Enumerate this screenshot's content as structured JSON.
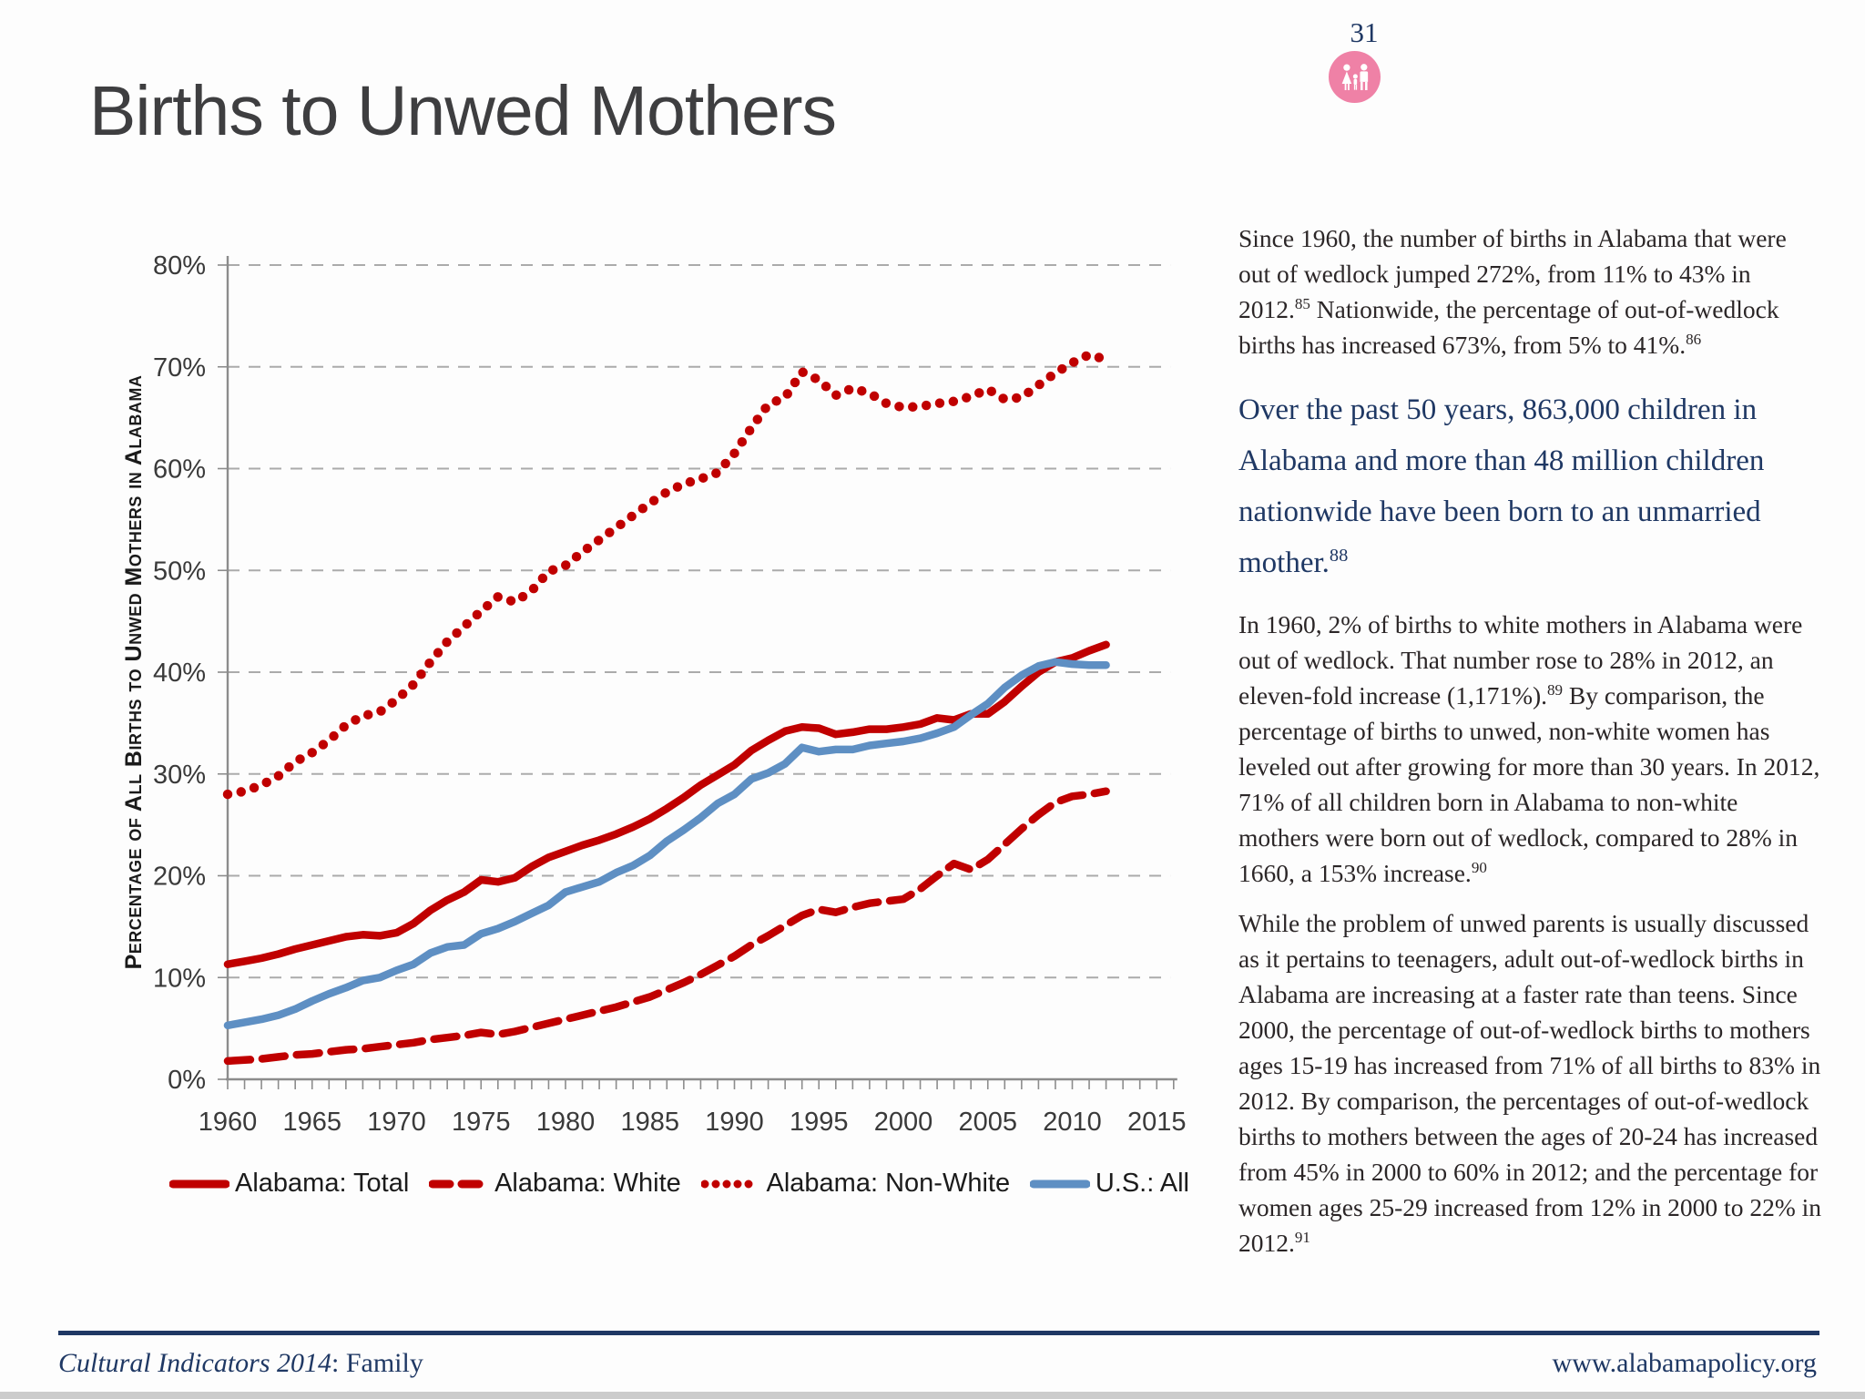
{
  "page": {
    "number": "31"
  },
  "title": "Births to Unwed Mothers",
  "colors": {
    "accent_navy": "#1f3864",
    "badge_pink": "#ef81a6",
    "chart_red": "#c00000",
    "chart_blue": "#5e8fc3"
  },
  "icons": {
    "family_badge": "family-icon"
  },
  "article": {
    "paragraphs": [
      {
        "style": "body",
        "segments": [
          {
            "t": "Since 1960, the number of births in Alabama that were out of wedlock jumped 272%, from 11% to 43% in 2012."
          },
          {
            "sup": "85"
          },
          {
            "t": " Nationwide, the percentage of out-of-wedlock births has increased 673%, from 5% to 41%."
          },
          {
            "sup": "86"
          }
        ]
      },
      {
        "style": "callout",
        "segments": [
          {
            "t": "Over the past 50 years, 863,000 children in Alabama  and more than 48 million children nationwide have been born to an unmarried mother."
          },
          {
            "sup": "88"
          }
        ]
      },
      {
        "style": "body",
        "segments": [
          {
            "t": "In 1960, 2% of births to white mothers in Alabama were out of wedlock.  That number rose to 28% in 2012, an eleven-fold increase (1,171%)."
          },
          {
            "sup": "89"
          },
          {
            "t": "  By comparison, the percentage of births to unwed, non-white women has leveled out after growing for more than 30 years.  In 2012, 71% of all children born in Alabama to non-white mothers were born out of wedlock, compared to 28% in 1660, a 153% increase."
          },
          {
            "sup": "90"
          }
        ]
      },
      {
        "style": "body",
        "segments": [
          {
            "t": "While the problem of unwed parents is usually discussed as it pertains to teenagers, adult out-of-wedlock births in Alabama are increasing at a faster rate than teens.  Since 2000, the percentage of out-of-wedlock births to mothers ages 15-19 has increased from 71% of all births to 83% in 2012.  By comparison, the percentages of out-of-wedlock births to mothers between the ages of 20-24 has increased from 45% in 2000 to 60% in 2012; and the percentage for women ages 25-29 increased from 12% in 2000 to 22% in 2012."
          },
          {
            "sup": "91"
          }
        ]
      }
    ]
  },
  "footer": {
    "left_italic": "Cultural Indicators 2014",
    "left_rest": ": Family",
    "right": "www.alabamapolicy.org"
  },
  "chart_data": {
    "type": "line",
    "title": "",
    "xlabel": "",
    "ylabel": "Percentage of All Births to Unwed Mothers in Alabama",
    "xlim": [
      1960,
      2016
    ],
    "ylim": [
      0,
      80
    ],
    "grid": true,
    "legend_position": "bottom",
    "grid_color": "#ababab",
    "axis_color": "#8c8c8c",
    "tick_label_color": "#3a3a3a",
    "xticks": [
      1960,
      1965,
      1970,
      1975,
      1980,
      1985,
      1990,
      1995,
      2000,
      2005,
      2010,
      2015
    ],
    "yticks": [
      "0%",
      "10%",
      "20%",
      "30%",
      "40%",
      "50%",
      "60%",
      "70%",
      "80%"
    ],
    "years": [
      1960,
      1961,
      1962,
      1963,
      1964,
      1965,
      1966,
      1967,
      1968,
      1969,
      1970,
      1971,
      1972,
      1973,
      1974,
      1975,
      1976,
      1977,
      1978,
      1979,
      1980,
      1981,
      1982,
      1983,
      1984,
      1985,
      1986,
      1987,
      1988,
      1989,
      1990,
      1991,
      1992,
      1993,
      1994,
      1995,
      1996,
      1997,
      1998,
      1999,
      2000,
      2001,
      2002,
      2003,
      2004,
      2005,
      2006,
      2007,
      2008,
      2009,
      2010,
      2011,
      2012
    ],
    "series": [
      {
        "name": "Alabama: Total",
        "color": "#c00000",
        "style": "solid",
        "values": [
          11.3,
          11.6,
          11.9,
          12.3,
          12.8,
          13.2,
          13.6,
          14.0,
          14.2,
          14.1,
          14.4,
          15.3,
          16.6,
          17.6,
          18.4,
          19.6,
          19.4,
          19.8,
          20.9,
          21.8,
          22.4,
          23.0,
          23.5,
          24.1,
          24.8,
          25.6,
          26.6,
          27.7,
          28.9,
          29.9,
          30.9,
          32.3,
          33.3,
          34.2,
          34.6,
          34.5,
          33.9,
          34.1,
          34.4,
          34.4,
          34.6,
          34.9,
          35.5,
          35.3,
          35.9,
          35.9,
          37.1,
          38.6,
          40.0,
          41.0,
          41.4,
          42.1,
          42.7
        ]
      },
      {
        "name": "Alabama: White",
        "color": "#c00000",
        "style": "dashed",
        "values": [
          1.8,
          1.9,
          2.0,
          2.2,
          2.4,
          2.5,
          2.7,
          2.9,
          3.0,
          3.2,
          3.4,
          3.6,
          3.9,
          4.1,
          4.3,
          4.6,
          4.4,
          4.7,
          5.1,
          5.5,
          5.9,
          6.3,
          6.7,
          7.1,
          7.6,
          8.1,
          8.8,
          9.5,
          10.3,
          11.2,
          12.1,
          13.2,
          14.1,
          15.1,
          16.1,
          16.7,
          16.4,
          16.9,
          17.3,
          17.5,
          17.7,
          18.7,
          20.0,
          21.2,
          20.6,
          21.6,
          23.1,
          24.6,
          26.0,
          27.2,
          27.8,
          28.0,
          28.3
        ]
      },
      {
        "name": "Alabama: Non-White",
        "color": "#c00000",
        "style": "dotted",
        "values": [
          28.0,
          28.3,
          28.9,
          29.8,
          31.2,
          32.1,
          33.3,
          34.8,
          35.7,
          36.1,
          37.3,
          38.8,
          41.0,
          43.0,
          44.5,
          46.0,
          47.4,
          46.9,
          48.0,
          49.9,
          50.5,
          51.8,
          53.0,
          54.2,
          55.4,
          56.6,
          57.7,
          58.5,
          59.0,
          59.6,
          61.5,
          64.0,
          66.3,
          67.0,
          69.5,
          68.7,
          67.2,
          67.9,
          67.4,
          66.4,
          66.0,
          66.1,
          66.4,
          66.6,
          67.1,
          67.8,
          66.8,
          67.0,
          68.2,
          69.4,
          70.4,
          71.2,
          70.7
        ]
      },
      {
        "name": "U.S.: All",
        "color": "#5e8fc3",
        "style": "solid",
        "values": [
          5.3,
          5.6,
          5.9,
          6.3,
          6.9,
          7.7,
          8.4,
          9.0,
          9.7,
          10.0,
          10.7,
          11.3,
          12.4,
          13.0,
          13.2,
          14.3,
          14.8,
          15.5,
          16.3,
          17.1,
          18.4,
          18.9,
          19.4,
          20.3,
          21.0,
          22.0,
          23.4,
          24.5,
          25.7,
          27.1,
          28.0,
          29.5,
          30.1,
          31.0,
          32.6,
          32.2,
          32.4,
          32.4,
          32.8,
          33.0,
          33.2,
          33.5,
          34.0,
          34.6,
          35.8,
          36.9,
          38.5,
          39.7,
          40.6,
          41.0,
          40.8,
          40.7,
          40.7
        ]
      }
    ]
  }
}
